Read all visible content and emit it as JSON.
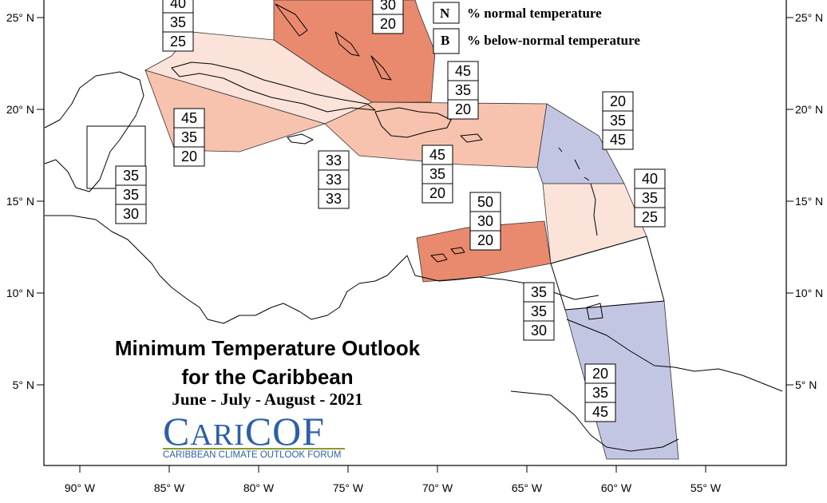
{
  "title": {
    "line1": "Minimum Temperature Outlook",
    "line2": "for the Caribbean"
  },
  "period": "June - July - August - 2021",
  "logo": {
    "word_first": "C",
    "word_rest": "ARI",
    "word_cof": "COF",
    "subtitle": "CARIBBEAN CLIMATE OUTLOOK FORUM"
  },
  "legend": [
    {
      "key": "N",
      "label": "% normal temperature"
    },
    {
      "key": "B",
      "label": "% below-normal temperature"
    }
  ],
  "axes": {
    "lat_labels": [
      "25° N",
      "20° N",
      "15° N",
      "10° N",
      "5° N"
    ],
    "lon_labels": [
      "90° W",
      "85° W",
      "80° W",
      "75° W",
      "70° W",
      "65° W",
      "60° W",
      "55° W"
    ]
  },
  "colors": {
    "above_strong": "#e98a6e",
    "above_moderate": "#f7c3ae",
    "above_light": "#fbe3d9",
    "below_light": "#c3c6e3"
  },
  "regions": [
    {
      "name": "bahamas",
      "probs": [
        "40",
        "35",
        "25"
      ],
      "color": "#e98a6e"
    },
    {
      "name": "bahamas-east",
      "probs": [
        "30",
        "20"
      ],
      "color": "#e98a6e"
    },
    {
      "name": "cuba-north",
      "probs": [
        "40",
        "35",
        "25"
      ],
      "color": "#fbe3d9"
    },
    {
      "name": "cuba-south",
      "probs": [
        "45",
        "35",
        "20"
      ],
      "color": "#f7c3ae"
    },
    {
      "name": "hispaniola-north",
      "probs": [
        "45",
        "35",
        "20"
      ],
      "color": "#f7c3ae"
    },
    {
      "name": "hispaniola-south",
      "probs": [
        "45",
        "35",
        "20"
      ],
      "color": "#f7c3ae"
    },
    {
      "name": "jamaica",
      "probs": [
        "33",
        "33",
        "33"
      ],
      "color": ""
    },
    {
      "name": "belize",
      "probs": [
        "35",
        "35",
        "30"
      ],
      "color": ""
    },
    {
      "name": "leeward-islands",
      "probs": [
        "20",
        "35",
        "45"
      ],
      "color": "#c3c6e3"
    },
    {
      "name": "windward-islands",
      "probs": [
        "40",
        "35",
        "25"
      ],
      "color": "#fbe3d9"
    },
    {
      "name": "abc-islands",
      "probs": [
        "50",
        "30",
        "20"
      ],
      "color": "#e98a6e"
    },
    {
      "name": "trinidad",
      "probs": [
        "35",
        "35",
        "30"
      ],
      "color": ""
    },
    {
      "name": "guianas",
      "probs": [
        "20",
        "35",
        "45"
      ],
      "color": "#c3c6e3"
    }
  ]
}
